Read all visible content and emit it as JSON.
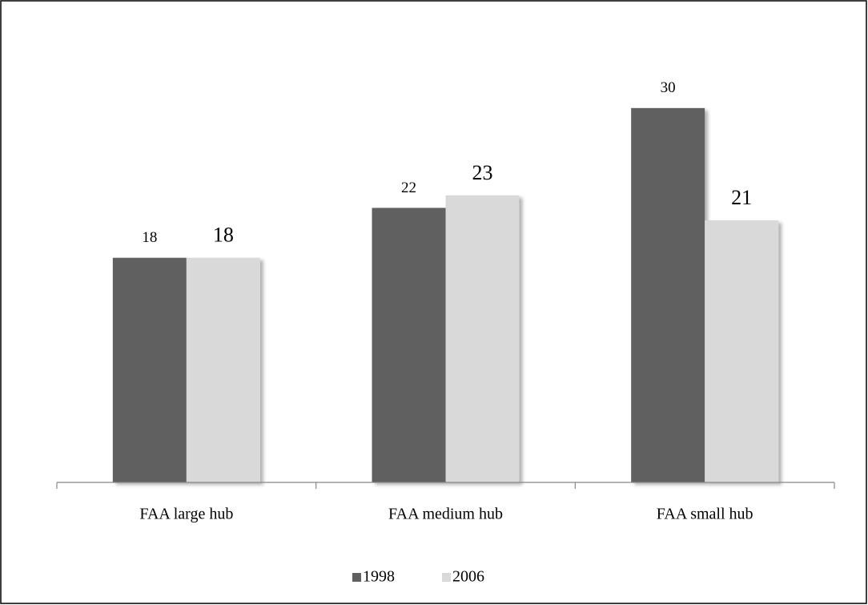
{
  "chart_data": {
    "type": "bar",
    "categories": [
      "FAA large hub",
      "FAA medium hub",
      "FAA small hub"
    ],
    "series": [
      {
        "name": "1998",
        "color": "#606060",
        "values": [
          18,
          22,
          30
        ]
      },
      {
        "name": "2006",
        "color": "#d9d9d9",
        "values": [
          18,
          23,
          21
        ]
      }
    ],
    "ylim": [
      0,
      35
    ],
    "legend": "bottom"
  }
}
